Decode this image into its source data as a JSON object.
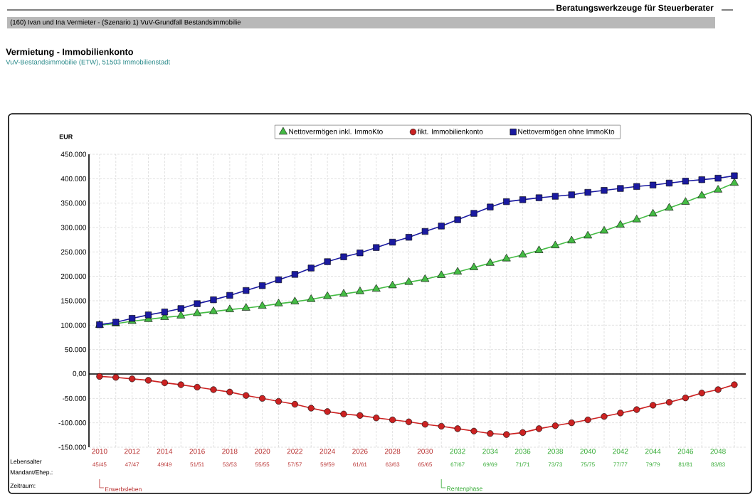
{
  "chart_data": {
    "type": "line",
    "title": "Vermietung  -  Immobilienkonto",
    "subtitle": "VuV-Bestandsimmobilie (ETW), 51503 Immobilienstadt",
    "ylabel": "EUR",
    "annotations": [
      "Beratungswerkzeuge für Steuerberater",
      "(160) Ivan und Ina Vermieter  -  (Szenario 1) VuV-Grundfall Bestandsimmobilie",
      "Lebensalter",
      "Mandant/Ehep.:",
      "Zeitraum:",
      "45/45",
      "47/47",
      "49/49",
      "51/51",
      "53/53",
      "55/55",
      "57/57",
      "59/59",
      "61/61",
      "63/63",
      "65/65",
      "67/67",
      "69/69",
      "71/71",
      "73/73",
      "75/75",
      "77/77",
      "79/79",
      "81/81",
      "83/83"
    ],
    "x": [
      2010,
      2011,
      2012,
      2013,
      2014,
      2015,
      2016,
      2017,
      2018,
      2019,
      2020,
      2021,
      2022,
      2023,
      2024,
      2025,
      2026,
      2027,
      2028,
      2029,
      2030,
      2031,
      2032,
      2033,
      2034,
      2035,
      2036,
      2037,
      2038,
      2039,
      2040,
      2041,
      2042,
      2043,
      2044,
      2045,
      2046,
      2047,
      2048,
      2049
    ],
    "series": [
      {
        "name": "Nettovermögen inkl. ImmoKto",
        "color": "#44bb44",
        "marker": "triangle",
        "values": [
          100000,
          103000,
          108000,
          112000,
          116000,
          119000,
          124000,
          128000,
          132000,
          135000,
          139000,
          144000,
          148000,
          153000,
          159000,
          164000,
          169000,
          174000,
          181000,
          188000,
          194000,
          202000,
          209000,
          218000,
          227000,
          236000,
          244000,
          253000,
          263000,
          273000,
          283000,
          293000,
          305000,
          316000,
          328000,
          340000,
          352000,
          365000,
          377000,
          391000
        ]
      },
      {
        "name": "fikt. Immobilienkonto",
        "color": "#cc2222",
        "marker": "circle",
        "values": [
          -5000,
          -7000,
          -10000,
          -13000,
          -18000,
          -22000,
          -27000,
          -32000,
          -37000,
          -44000,
          -50000,
          -56000,
          -62000,
          -70000,
          -77000,
          -82000,
          -85000,
          -90000,
          -94000,
          -98000,
          -103000,
          -107000,
          -112000,
          -117000,
          -122000,
          -124000,
          -120000,
          -112000,
          -106000,
          -100000,
          -94000,
          -87000,
          -80000,
          -73000,
          -64000,
          -58000,
          -49000,
          -39000,
          -32000,
          -22000
        ]
      },
      {
        "name": "Nettovermögen ohne ImmoKto",
        "color": "#1a1aa0",
        "marker": "square",
        "values": [
          101000,
          106000,
          114000,
          121000,
          127000,
          134000,
          144000,
          152000,
          161000,
          171000,
          181000,
          193000,
          204000,
          217000,
          230000,
          240000,
          248000,
          259000,
          270000,
          280000,
          292000,
          303000,
          316000,
          329000,
          342000,
          353000,
          357000,
          361000,
          364000,
          367000,
          372000,
          376000,
          380000,
          384000,
          387000,
          391000,
          395000,
          398000,
          401000,
          406000
        ]
      }
    ],
    "xlim": [
      2009.35,
      2049.7
    ],
    "xticks": [
      2010,
      {
        "value": 2011,
        "label": null
      },
      2012,
      {
        "value": 2013,
        "label": null
      },
      2014,
      {
        "value": 2015,
        "label": null
      },
      2016,
      {
        "value": 2017,
        "label": null
      },
      2018,
      {
        "value": 2019,
        "label": null
      },
      2020,
      {
        "value": 2021,
        "label": null
      },
      2022,
      {
        "value": 2023,
        "label": null
      },
      2024,
      {
        "value": 2025,
        "label": null
      },
      2026,
      {
        "value": 2027,
        "label": null
      },
      2028,
      {
        "value": 2029,
        "label": null
      },
      2030,
      {
        "value": 2031,
        "label": null
      },
      2032,
      {
        "value": 2033,
        "label": null
      },
      2034,
      {
        "value": 2035,
        "label": null
      },
      2036,
      {
        "value": 2037,
        "label": null
      },
      2038,
      {
        "value": 2039,
        "label": null
      },
      2040,
      {
        "value": 2041,
        "label": null
      },
      2042,
      {
        "value": 2043,
        "label": null
      },
      2044,
      {
        "value": 2045,
        "label": null
      },
      2046,
      {
        "value": 2047,
        "label": null
      },
      2048,
      {
        "value": 2049,
        "label": null
      }
    ],
    "ylim": [
      -150000,
      450000
    ],
    "yticks": [
      {
        "value": -150000,
        "label": "-150.000"
      },
      {
        "value": -100000,
        "label": "-100.000"
      },
      {
        "value": -50000,
        "label": "-50.000"
      },
      {
        "value": 0,
        "label": "0,00"
      },
      {
        "value": 50000,
        "label": "50.000"
      },
      {
        "value": 100000,
        "label": "100.000"
      },
      {
        "value": 150000,
        "label": "150.000"
      },
      {
        "value": 200000,
        "label": "200.000"
      },
      {
        "value": 250000,
        "label": "250.000"
      },
      {
        "value": 300000,
        "label": "300.000"
      },
      {
        "value": 350000,
        "label": "350.000"
      },
      {
        "value": 400000,
        "label": "400.000"
      },
      {
        "value": 450000,
        "label": "450.000"
      }
    ],
    "ref_lines": [
      {
        "axis": "y",
        "value": 0,
        "color": "#000000"
      },
      {
        "axis": "x",
        "value": 2010,
        "label": "Erwerbsleben",
        "color": "#b83030"
      },
      {
        "axis": "x",
        "value": 2031,
        "label": "Rentenphase",
        "color": "#33aa33"
      }
    ],
    "grid": true,
    "legend": "top"
  }
}
